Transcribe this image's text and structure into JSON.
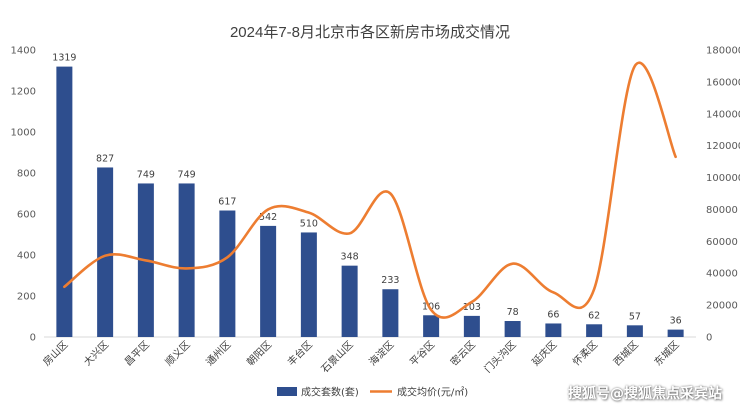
{
  "watermark": "搜狐号@搜狐焦点采宾站",
  "chart_data": {
    "type": "bar",
    "title": "2024年7-8月北京市各区新房市场成交情况",
    "categories": [
      "房山区",
      "大兴区",
      "昌平区",
      "顺义区",
      "通州区",
      "朝阳区",
      "丰台区",
      "石景山区",
      "海淀区",
      "平谷区",
      "密云区",
      "门头沟区",
      "延庆区",
      "怀柔区",
      "西城区",
      "东城区"
    ],
    "series": [
      {
        "name": "成交套数(套)",
        "type": "bar",
        "axis": "left",
        "color": "#2E4E8E",
        "values": [
          1319,
          827,
          749,
          749,
          617,
          542,
          510,
          348,
          233,
          106,
          103,
          78,
          66,
          62,
          57,
          36
        ]
      },
      {
        "name": "成交均价(元/㎡)",
        "type": "line",
        "axis": "right",
        "color": "#ED7D31",
        "values": [
          31500,
          51000,
          48000,
          43000,
          50000,
          80000,
          78000,
          65000,
          90000,
          17000,
          22000,
          46000,
          28000,
          30000,
          170000,
          113000
        ]
      }
    ],
    "y_left": {
      "min": 0,
      "max": 1400,
      "ticks": [
        0,
        200,
        400,
        600,
        800,
        1000,
        1200,
        1400
      ]
    },
    "y_right": {
      "min": 0,
      "max": 180000,
      "ticks": [
        0,
        20000,
        40000,
        60000,
        80000,
        100000,
        120000,
        140000,
        160000,
        180000
      ]
    },
    "grid": false,
    "legend_position": "bottom"
  }
}
